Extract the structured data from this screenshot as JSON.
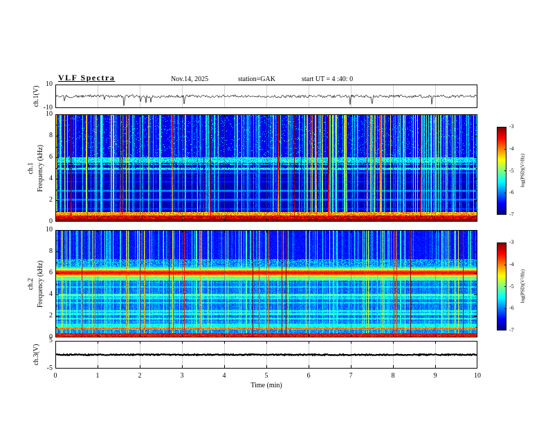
{
  "header": {
    "title": "VLF Spectra",
    "date": "Nov.14, 2025",
    "station": "station=GAK",
    "start_ut": "start UT = 4 :40: 0"
  },
  "panels": {
    "ch1_wave": {
      "label": "ch.1(V)",
      "ymax": "10",
      "ymin": "-10"
    },
    "ch1_spec": {
      "channel": "ch.1",
      "axis": "Frequency (kHz)",
      "yticks": [
        "0",
        "2",
        "4",
        "6",
        "8",
        "10"
      ]
    },
    "ch2_spec": {
      "channel": "ch.2",
      "axis": "Frequency (kHz)",
      "yticks": [
        "0",
        "2",
        "4",
        "6",
        "8",
        "10"
      ]
    },
    "ch3_wave": {
      "label": "ch.3(V)",
      "ymax": "5",
      "ymin": "-5"
    }
  },
  "xaxis": {
    "label": "Time (min)",
    "ticks": [
      "0",
      "1",
      "2",
      "3",
      "4",
      "5",
      "6",
      "7",
      "8",
      "9",
      "10"
    ]
  },
  "colorbar": {
    "label": "log(PSD)(V²/Hz)",
    "ticks": [
      "-3",
      "-4",
      "-5",
      "-6",
      "-7"
    ]
  },
  "colors": {
    "background": "#ffffff",
    "axis": "#000000",
    "colormap": "jet"
  },
  "chart_data": [
    {
      "type": "line",
      "name": "ch.1 waveform",
      "xlabel": "Time (min)",
      "xlim": [
        0,
        10
      ],
      "ylabel": "ch.1(V)",
      "ylim": [
        -10,
        10
      ],
      "summary": "continuous broadband noise of about ±2 V around 0 V with sporadic impulsive negative spikes, the largest reaching about -9 V near t=1.6 min and another near t=2.2 min"
    },
    {
      "type": "heatmap",
      "name": "ch.1 spectrogram",
      "xlabel": "Time (min)",
      "xlim": [
        0,
        10
      ],
      "ylabel": "Frequency (kHz)",
      "ylim": [
        0,
        10
      ],
      "colorbar_label": "log(PSD)(V²/Hz)",
      "clim": [
        -7,
        -3
      ],
      "features": [
        "intense band below ~1 kHz reaching -3 to -3.5 (red/yellow/green speckle)",
        "dark blue horizontally striped background from 1 to 5.5 kHz near -6.5 to -6",
        "brighter cyan-green band between ~5.5 and 6 kHz",
        "dense vertical sferic streaks spanning 0-10 kHz, strongest (green/yellow, occasionally red) above 6 kHz"
      ]
    },
    {
      "type": "heatmap",
      "name": "ch.2 spectrogram",
      "xlabel": "Time (min)",
      "xlim": [
        0,
        10
      ],
      "ylabel": "Frequency (kHz)",
      "ylim": [
        0,
        10
      ],
      "colorbar_label": "log(PSD)(V²/Hz)",
      "clim": [
        -7,
        -3
      ],
      "features": [
        "bright yellow-green hiss band centered near 6 kHz at about -3.6, persistent for the full 10 minutes",
        "green/cyan horizontally striped activity from ~1.3 to 5.5 kHz around -5.5 to -5",
        "bright bands below 1 kHz (near 0.3 and 0.85 kHz) with a dark gap near 0.6 kHz",
        "dark blue background from 7 to 10 kHz crossed by dense vertical sferic streaks"
      ]
    },
    {
      "type": "line",
      "name": "ch.3 waveform",
      "xlabel": "Time (min)",
      "xlim": [
        0,
        10
      ],
      "ylabel": "ch.3(V)",
      "ylim": [
        -5,
        5
      ],
      "summary": "flat thick trace at 0 V for the full 10 minutes"
    }
  ]
}
